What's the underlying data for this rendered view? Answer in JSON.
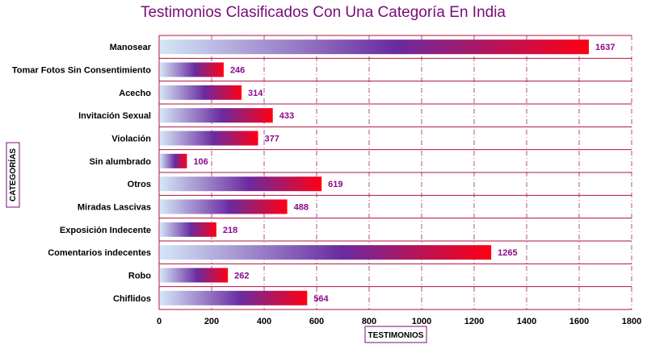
{
  "chart_data": {
    "type": "bar",
    "orientation": "horizontal",
    "title": "Testimonios Clasificados Con Una Categoría En India",
    "xlabel": "TESTIMONIOS",
    "ylabel": "CATEGORÍAS",
    "categories": [
      "Manosear",
      "Tomar Fotos Sin Consentimiento",
      "Acecho",
      "Invitación Sexual",
      "Violación",
      "Sin alumbrado",
      "Otros",
      "Miradas Lascivas",
      "Exposición Indecente",
      "Comentarios indecentes",
      "Robo",
      "Chiflidos"
    ],
    "values": [
      1637,
      246,
      314,
      433,
      377,
      106,
      619,
      488,
      218,
      1265,
      262,
      564
    ],
    "xlim": [
      0,
      1800
    ],
    "xticks": [
      0,
      200,
      400,
      600,
      800,
      1000,
      1200,
      1400,
      1600,
      1800
    ],
    "grid": true,
    "legend": "none",
    "colors": {
      "title": "#7a0a7a",
      "label_box": "#7a0a7a",
      "value_label": "#8b0a8b",
      "row_line": "#b01040",
      "grid": "#a8508a",
      "bar_start": "#d4e6f6",
      "bar_mid": "#6a2aa0",
      "bar_end": "#ff0014"
    }
  }
}
